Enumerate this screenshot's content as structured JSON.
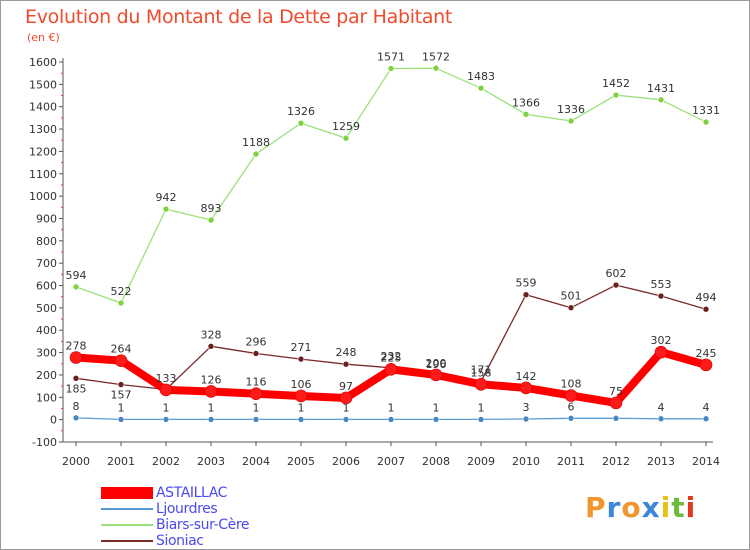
{
  "title": "Evolution du Montant de la Dette par Habitant",
  "unit_label": "(en €)",
  "brand": {
    "text": "Proxiti",
    "colors": [
      "#f0962e",
      "#3d86d9",
      "#f0962e",
      "#3d86d9",
      "#e8c21a",
      "#6dbb3a",
      "#e2381e"
    ]
  },
  "chart_data": {
    "type": "line",
    "title": "Evolution du Montant de la Dette par Habitant",
    "ylabel": "(en €)",
    "xlabel": "",
    "x": [
      2000,
      2001,
      2002,
      2003,
      2004,
      2005,
      2006,
      2007,
      2008,
      2009,
      2010,
      2011,
      2012,
      2013,
      2014
    ],
    "ylim": [
      -100,
      1600
    ],
    "yticks": [
      -100,
      0,
      100,
      200,
      300,
      400,
      500,
      600,
      700,
      800,
      900,
      1000,
      1100,
      1200,
      1300,
      1400,
      1500,
      1600
    ],
    "grid": false,
    "legend_position": "bottom-left",
    "series": [
      {
        "name": "Biars-sur-Cère",
        "color": "#99e27a",
        "marker": "#7fd13d",
        "values": [
          594,
          522,
          942,
          893,
          1188,
          1326,
          1259,
          1571,
          1572,
          1483,
          1366,
          1336,
          1452,
          1431,
          1331
        ]
      },
      {
        "name": "Sioniac",
        "color": "#7a2a2a",
        "marker": "#6b1f1f",
        "values": [
          185,
          157,
          135,
          328,
          296,
          271,
          248,
          232,
          196,
          171,
          559,
          501,
          602,
          553,
          494
        ]
      },
      {
        "name": "Ljourdres",
        "color": "#5b9bd5",
        "marker": "#4a86c0",
        "values": [
          8,
          1,
          1,
          1,
          1,
          1,
          1,
          1,
          1,
          1,
          3,
          6,
          6,
          4,
          4
        ]
      },
      {
        "name": "ASTAILLAC",
        "color": "#ff0000",
        "marker": "#ff1a1a",
        "values": [
          278,
          264,
          133,
          126,
          116,
          106,
          97,
          225,
          200,
          158,
          142,
          108,
          75,
          302,
          245
        ]
      }
    ],
    "labels": [
      {
        "series": "Biars-sur-Cère",
        "text": [
          "594",
          "522",
          "942",
          "893",
          "1188",
          "1326",
          "1259",
          "1571",
          "1572",
          "1483",
          "1366",
          "1336",
          "1452",
          "1431",
          "1331"
        ]
      },
      {
        "series": "Sioniac",
        "text": [
          "185",
          "157",
          "",
          "328",
          "296",
          "271",
          "248",
          "232",
          "196",
          "171",
          "559",
          "501",
          "602",
          "553",
          "494"
        ]
      },
      {
        "series": "Ljourdres",
        "text": [
          "8",
          "1",
          "1",
          "1",
          "1",
          "1",
          "1",
          "1",
          "1",
          "1",
          "3",
          "6",
          "",
          "4",
          "4"
        ]
      },
      {
        "series": "ASTAILLAC",
        "text": [
          "278",
          "264",
          "133",
          "126",
          "116",
          "106",
          "97",
          "225",
          "200",
          "158",
          "142",
          "108",
          "75",
          "302",
          "245"
        ]
      }
    ]
  },
  "legend": [
    {
      "label": "ASTAILLAC",
      "color": "#ff0000",
      "thick": true
    },
    {
      "label": "Ljourdres",
      "color": "#5b9bd5",
      "thick": false
    },
    {
      "label": "Biars-sur-Cère",
      "color": "#99e27a",
      "thick": false
    },
    {
      "label": "Sioniac",
      "color": "#7a2a2a",
      "thick": false
    }
  ]
}
